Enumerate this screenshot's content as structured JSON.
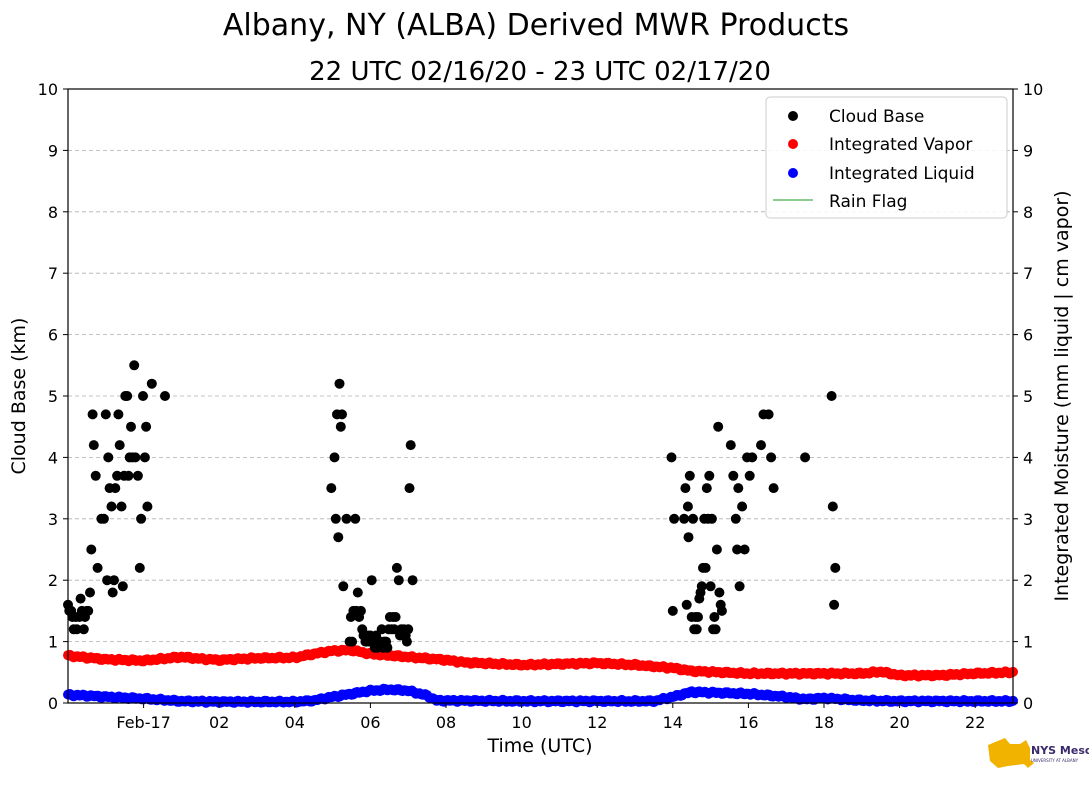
{
  "colors": {
    "cloud_base": "#000000",
    "vapor": "#ff0000",
    "liquid": "#0000ff",
    "rain_flag": "#66bb66",
    "grid": "#b0b0b0"
  },
  "chart_data": {
    "type": "scatter",
    "title": "Albany, NY (ALBA) Derived MWR Products",
    "subtitle": "22 UTC 02/16/20 - 23 UTC 02/17/20",
    "xlabel": "Time (UTC)",
    "ylabel_left": "Cloud Base (km)",
    "ylabel_right": "Integrated Moisture (mm liquid | cm vapor)",
    "xlim": [
      "2020-02-16 22:00",
      "2020-02-17 23:00"
    ],
    "ylim": [
      0,
      10
    ],
    "y_ticks": [
      "0",
      "1",
      "2",
      "3",
      "4",
      "5",
      "6",
      "7",
      "8",
      "9",
      "10"
    ],
    "x_ticks": [
      {
        "time": "2020-02-17 00:00",
        "label": "Feb-17"
      },
      {
        "time": "2020-02-17 02:00",
        "label": "02"
      },
      {
        "time": "2020-02-17 04:00",
        "label": "04"
      },
      {
        "time": "2020-02-17 06:00",
        "label": "06"
      },
      {
        "time": "2020-02-17 08:00",
        "label": "08"
      },
      {
        "time": "2020-02-17 10:00",
        "label": "10"
      },
      {
        "time": "2020-02-17 12:00",
        "label": "12"
      },
      {
        "time": "2020-02-17 14:00",
        "label": "14"
      },
      {
        "time": "2020-02-17 16:00",
        "label": "16"
      },
      {
        "time": "2020-02-17 18:00",
        "label": "18"
      },
      {
        "time": "2020-02-17 20:00",
        "label": "20"
      },
      {
        "time": "2020-02-17 22:00",
        "label": "22"
      }
    ],
    "grid": "y-dashed",
    "legend": {
      "placement": "top-right",
      "entries": [
        {
          "label": "Cloud Base",
          "kind": "dot",
          "color": "#000000"
        },
        {
          "label": "Integrated Vapor",
          "kind": "dot",
          "color": "#ff0000"
        },
        {
          "label": "Integrated Liquid",
          "kind": "dot",
          "color": "#0000ff"
        },
        {
          "label": "Rain Flag",
          "kind": "line",
          "color": "#66bb66"
        }
      ]
    },
    "series": [
      {
        "name": "Cloud Base",
        "color": "#000000",
        "points": [
          [
            "2020-02-16 22:00",
            1.6
          ],
          [
            "2020-02-16 22:02",
            1.5
          ],
          [
            "2020-02-16 22:05",
            1.5
          ],
          [
            "2020-02-16 22:07",
            1.4
          ],
          [
            "2020-02-16 22:09",
            1.2
          ],
          [
            "2020-02-16 22:12",
            1.4
          ],
          [
            "2020-02-16 22:14",
            1.2
          ],
          [
            "2020-02-16 22:18",
            1.4
          ],
          [
            "2020-02-16 22:20",
            1.7
          ],
          [
            "2020-02-16 22:22",
            1.5
          ],
          [
            "2020-02-16 22:25",
            1.2
          ],
          [
            "2020-02-16 22:27",
            1.4
          ],
          [
            "2020-02-16 22:30",
            1.5
          ],
          [
            "2020-02-16 22:32",
            1.5
          ],
          [
            "2020-02-16 22:35",
            1.8
          ],
          [
            "2020-02-16 22:37",
            2.5
          ],
          [
            "2020-02-16 22:39",
            4.7
          ],
          [
            "2020-02-16 22:41",
            4.2
          ],
          [
            "2020-02-16 22:44",
            3.7
          ],
          [
            "2020-02-16 22:47",
            2.2
          ],
          [
            "2020-02-16 22:53",
            3.0
          ],
          [
            "2020-02-16 22:57",
            3.0
          ],
          [
            "2020-02-16 23:00",
            4.7
          ],
          [
            "2020-02-16 23:02",
            2.0
          ],
          [
            "2020-02-16 23:04",
            4.0
          ],
          [
            "2020-02-16 23:06",
            3.5
          ],
          [
            "2020-02-16 23:09",
            3.2
          ],
          [
            "2020-02-16 23:11",
            1.8
          ],
          [
            "2020-02-16 23:13",
            2.0
          ],
          [
            "2020-02-16 23:15",
            3.5
          ],
          [
            "2020-02-16 23:18",
            3.7
          ],
          [
            "2020-02-16 23:20",
            4.7
          ],
          [
            "2020-02-16 23:22",
            4.2
          ],
          [
            "2020-02-16 23:25",
            3.2
          ],
          [
            "2020-02-16 23:27",
            1.9
          ],
          [
            "2020-02-16 23:29",
            3.7
          ],
          [
            "2020-02-16 23:31",
            5.0
          ],
          [
            "2020-02-16 23:34",
            5.0
          ],
          [
            "2020-02-16 23:36",
            3.7
          ],
          [
            "2020-02-16 23:38",
            4.0
          ],
          [
            "2020-02-16 23:40",
            4.5
          ],
          [
            "2020-02-16 23:42",
            4.0
          ],
          [
            "2020-02-16 23:45",
            5.5
          ],
          [
            "2020-02-16 23:47",
            4.0
          ],
          [
            "2020-02-16 23:51",
            3.7
          ],
          [
            "2020-02-16 23:54",
            2.2
          ],
          [
            "2020-02-16 23:56",
            3.0
          ],
          [
            "2020-02-16 23:59",
            5.0
          ],
          [
            "2020-02-17 00:02",
            4.0
          ],
          [
            "2020-02-17 00:04",
            4.5
          ],
          [
            "2020-02-17 00:06",
            3.2
          ],
          [
            "2020-02-17 00:13",
            5.2
          ],
          [
            "2020-02-17 00:34",
            5.0
          ],
          [
            "2020-02-17 04:58",
            3.5
          ],
          [
            "2020-02-17 05:03",
            4.0
          ],
          [
            "2020-02-17 05:05",
            3.0
          ],
          [
            "2020-02-17 05:07",
            4.7
          ],
          [
            "2020-02-17 05:09",
            2.7
          ],
          [
            "2020-02-17 05:11",
            5.2
          ],
          [
            "2020-02-17 05:13",
            4.5
          ],
          [
            "2020-02-17 05:15",
            4.7
          ],
          [
            "2020-02-17 05:17",
            1.9
          ],
          [
            "2020-02-17 05:22",
            3.0
          ],
          [
            "2020-02-17 05:27",
            1.0
          ],
          [
            "2020-02-17 05:29",
            1.4
          ],
          [
            "2020-02-17 05:31",
            1.0
          ],
          [
            "2020-02-17 05:33",
            1.5
          ],
          [
            "2020-02-17 05:36",
            3.0
          ],
          [
            "2020-02-17 05:38",
            1.5
          ],
          [
            "2020-02-17 05:40",
            1.8
          ],
          [
            "2020-02-17 05:42",
            1.4
          ],
          [
            "2020-02-17 05:45",
            1.5
          ],
          [
            "2020-02-17 05:47",
            1.2
          ],
          [
            "2020-02-17 05:49",
            1.1
          ],
          [
            "2020-02-17 05:52",
            1.0
          ],
          [
            "2020-02-17 05:54",
            1.0
          ],
          [
            "2020-02-17 05:56",
            1.1
          ],
          [
            "2020-02-17 05:58",
            1.0
          ],
          [
            "2020-02-17 06:00",
            1.1
          ],
          [
            "2020-02-17 06:02",
            2.0
          ],
          [
            "2020-02-17 06:04",
            1.0
          ],
          [
            "2020-02-17 06:07",
            0.9
          ],
          [
            "2020-02-17 06:09",
            1.1
          ],
          [
            "2020-02-17 06:11",
            0.9
          ],
          [
            "2020-02-17 06:13",
            1.0
          ],
          [
            "2020-02-17 06:16",
            1.0
          ],
          [
            "2020-02-17 06:18",
            1.2
          ],
          [
            "2020-02-17 06:20",
            0.9
          ],
          [
            "2020-02-17 06:22",
            1.0
          ],
          [
            "2020-02-17 06:25",
            1.0
          ],
          [
            "2020-02-17 06:27",
            0.9
          ],
          [
            "2020-02-17 06:29",
            1.2
          ],
          [
            "2020-02-17 06:31",
            1.4
          ],
          [
            "2020-02-17 06:34",
            1.2
          ],
          [
            "2020-02-17 06:36",
            1.4
          ],
          [
            "2020-02-17 06:38",
            1.2
          ],
          [
            "2020-02-17 06:40",
            1.4
          ],
          [
            "2020-02-17 06:42",
            2.2
          ],
          [
            "2020-02-17 06:45",
            2.0
          ],
          [
            "2020-02-17 06:47",
            1.1
          ],
          [
            "2020-02-17 06:49",
            1.2
          ],
          [
            "2020-02-17 06:51",
            1.1
          ],
          [
            "2020-02-17 06:53",
            1.2
          ],
          [
            "2020-02-17 06:56",
            1.1
          ],
          [
            "2020-02-17 06:58",
            1.0
          ],
          [
            "2020-02-17 07:00",
            1.2
          ],
          [
            "2020-02-17 07:02",
            3.5
          ],
          [
            "2020-02-17 07:04",
            4.2
          ],
          [
            "2020-02-17 07:07",
            2.0
          ],
          [
            "2020-02-17 13:58",
            4.0
          ],
          [
            "2020-02-17 14:00",
            1.5
          ],
          [
            "2020-02-17 14:02",
            3.0
          ],
          [
            "2020-02-17 14:18",
            3.0
          ],
          [
            "2020-02-17 14:20",
            3.5
          ],
          [
            "2020-02-17 14:22",
            1.6
          ],
          [
            "2020-02-17 14:24",
            3.2
          ],
          [
            "2020-02-17 14:25",
            2.7
          ],
          [
            "2020-02-17 14:27",
            3.7
          ],
          [
            "2020-02-17 14:30",
            1.4
          ],
          [
            "2020-02-17 14:32",
            3.0
          ],
          [
            "2020-02-17 14:34",
            1.2
          ],
          [
            "2020-02-17 14:36",
            1.4
          ],
          [
            "2020-02-17 14:38",
            1.2
          ],
          [
            "2020-02-17 14:40",
            1.4
          ],
          [
            "2020-02-17 14:42",
            1.7
          ],
          [
            "2020-02-17 14:44",
            1.8
          ],
          [
            "2020-02-17 14:46",
            1.9
          ],
          [
            "2020-02-17 14:48",
            2.2
          ],
          [
            "2020-02-17 14:50",
            3.0
          ],
          [
            "2020-02-17 14:52",
            2.2
          ],
          [
            "2020-02-17 14:54",
            3.5
          ],
          [
            "2020-02-17 14:56",
            3.0
          ],
          [
            "2020-02-17 14:58",
            3.7
          ],
          [
            "2020-02-17 15:00",
            1.9
          ],
          [
            "2020-02-17 15:02",
            3.0
          ],
          [
            "2020-02-17 15:04",
            1.2
          ],
          [
            "2020-02-17 15:06",
            1.4
          ],
          [
            "2020-02-17 15:08",
            1.2
          ],
          [
            "2020-02-17 15:10",
            2.5
          ],
          [
            "2020-02-17 15:12",
            4.5
          ],
          [
            "2020-02-17 15:14",
            1.8
          ],
          [
            "2020-02-17 15:16",
            1.6
          ],
          [
            "2020-02-17 15:18",
            1.5
          ],
          [
            "2020-02-17 15:32",
            4.2
          ],
          [
            "2020-02-17 15:36",
            3.7
          ],
          [
            "2020-02-17 15:40",
            3.0
          ],
          [
            "2020-02-17 15:42",
            2.5
          ],
          [
            "2020-02-17 15:44",
            3.5
          ],
          [
            "2020-02-17 15:46",
            1.9
          ],
          [
            "2020-02-17 15:50",
            3.2
          ],
          [
            "2020-02-17 15:54",
            2.5
          ],
          [
            "2020-02-17 15:58",
            4.0
          ],
          [
            "2020-02-17 16:02",
            3.7
          ],
          [
            "2020-02-17 16:06",
            4.0
          ],
          [
            "2020-02-17 16:20",
            4.2
          ],
          [
            "2020-02-17 16:24",
            4.7
          ],
          [
            "2020-02-17 16:32",
            4.7
          ],
          [
            "2020-02-17 16:36",
            4.0
          ],
          [
            "2020-02-17 16:40",
            3.5
          ],
          [
            "2020-02-17 17:30",
            4.0
          ],
          [
            "2020-02-17 18:12",
            5.0
          ],
          [
            "2020-02-17 18:14",
            3.2
          ],
          [
            "2020-02-17 18:16",
            1.6
          ],
          [
            "2020-02-17 18:18",
            2.2
          ]
        ]
      },
      {
        "name": "Integrated Vapor",
        "color": "#ff0000",
        "profile": [
          [
            "2020-02-16 22:00",
            0.77
          ],
          [
            "2020-02-16 22:30",
            0.74
          ],
          [
            "2020-02-16 23:00",
            0.71
          ],
          [
            "2020-02-17 00:00",
            0.69
          ],
          [
            "2020-02-17 00:30",
            0.72
          ],
          [
            "2020-02-17 01:00",
            0.75
          ],
          [
            "2020-02-17 01:30",
            0.72
          ],
          [
            "2020-02-17 02:00",
            0.7
          ],
          [
            "2020-02-17 03:00",
            0.73
          ],
          [
            "2020-02-17 04:00",
            0.74
          ],
          [
            "2020-02-17 04:30",
            0.8
          ],
          [
            "2020-02-17 05:00",
            0.85
          ],
          [
            "2020-02-17 05:30",
            0.86
          ],
          [
            "2020-02-17 06:00",
            0.8
          ],
          [
            "2020-02-17 07:00",
            0.75
          ],
          [
            "2020-02-17 08:00",
            0.7
          ],
          [
            "2020-02-17 08:30",
            0.66
          ],
          [
            "2020-02-17 10:00",
            0.62
          ],
          [
            "2020-02-17 12:00",
            0.65
          ],
          [
            "2020-02-17 13:00",
            0.62
          ],
          [
            "2020-02-17 14:00",
            0.57
          ],
          [
            "2020-02-17 14:30",
            0.52
          ],
          [
            "2020-02-17 16:00",
            0.48
          ],
          [
            "2020-02-17 18:00",
            0.48
          ],
          [
            "2020-02-17 19:00",
            0.48
          ],
          [
            "2020-02-17 19:30",
            0.51
          ],
          [
            "2020-02-17 20:00",
            0.45
          ],
          [
            "2020-02-17 21:00",
            0.45
          ],
          [
            "2020-02-17 22:00",
            0.48
          ],
          [
            "2020-02-17 23:00",
            0.5
          ]
        ]
      },
      {
        "name": "Integrated Liquid",
        "color": "#0000ff",
        "profile": [
          [
            "2020-02-16 22:00",
            0.13
          ],
          [
            "2020-02-16 22:30",
            0.12
          ],
          [
            "2020-02-16 23:00",
            0.1
          ],
          [
            "2020-02-17 00:00",
            0.07
          ],
          [
            "2020-02-17 00:30",
            0.05
          ],
          [
            "2020-02-17 01:00",
            0.03
          ],
          [
            "2020-02-17 02:00",
            0.02
          ],
          [
            "2020-02-17 03:00",
            0.02
          ],
          [
            "2020-02-17 04:00",
            0.02
          ],
          [
            "2020-02-17 04:30",
            0.04
          ],
          [
            "2020-02-17 05:00",
            0.1
          ],
          [
            "2020-02-17 05:30",
            0.15
          ],
          [
            "2020-02-17 06:00",
            0.2
          ],
          [
            "2020-02-17 06:30",
            0.22
          ],
          [
            "2020-02-17 07:00",
            0.2
          ],
          [
            "2020-02-17 07:30",
            0.12
          ],
          [
            "2020-02-17 07:45",
            0.04
          ],
          [
            "2020-02-17 10:00",
            0.03
          ],
          [
            "2020-02-17 13:30",
            0.03
          ],
          [
            "2020-02-17 14:00",
            0.1
          ],
          [
            "2020-02-17 14:30",
            0.18
          ],
          [
            "2020-02-17 15:00",
            0.17
          ],
          [
            "2020-02-17 16:00",
            0.15
          ],
          [
            "2020-02-17 17:00",
            0.1
          ],
          [
            "2020-02-17 17:30",
            0.06
          ],
          [
            "2020-02-17 18:00",
            0.08
          ],
          [
            "2020-02-17 18:30",
            0.06
          ],
          [
            "2020-02-17 19:00",
            0.04
          ],
          [
            "2020-02-17 20:00",
            0.03
          ],
          [
            "2020-02-17 23:00",
            0.03
          ]
        ]
      }
    ]
  },
  "logo": {
    "text": "NYS Mesonet",
    "subtext": "UNIVERSITY AT ALBANY"
  }
}
